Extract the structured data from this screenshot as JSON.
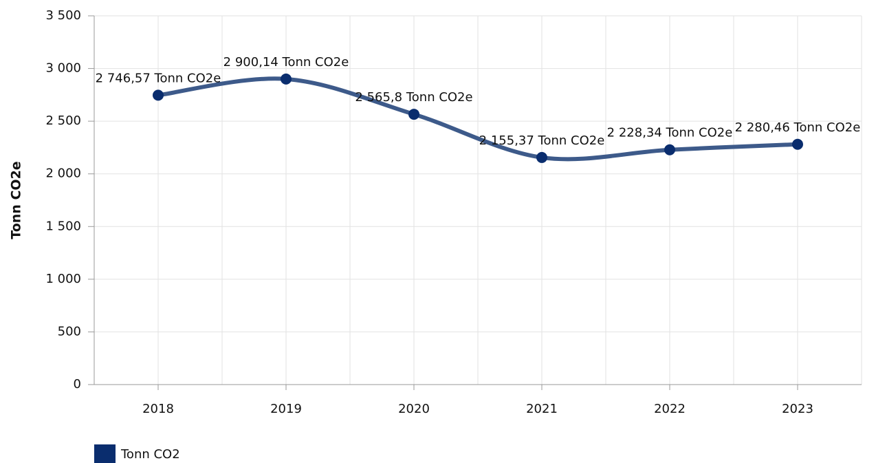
{
  "chart_data": {
    "type": "line",
    "y_label": "Tonn CO2e",
    "categories": [
      "2018",
      "2019",
      "2020",
      "2021",
      "2022",
      "2023"
    ],
    "series": [
      {
        "name": "Tonn CO2",
        "color": "#3d5a8a",
        "marker_color": "#0a2d6e",
        "values": [
          2746.57,
          2900.14,
          2565.8,
          2155.37,
          2228.34,
          2280.46
        ],
        "value_labels": [
          "2 746,57 Tonn CO2e",
          "2 900,14 Tonn CO2e",
          "2 565,8 Tonn CO2e",
          "2 155,37 Tonn CO2e",
          "2 228,34 Tonn CO2e",
          "2 280,46 Tonn CO2e"
        ]
      }
    ],
    "ylim": [
      0,
      3500
    ],
    "yticks": [
      0,
      500,
      {
        "value": 1000,
        "label": "1 000"
      },
      {
        "value": 1500,
        "label": "1 500"
      },
      {
        "value": 2000,
        "label": "2 000"
      },
      {
        "value": 2500,
        "label": "2 500"
      },
      {
        "value": 3000,
        "label": "3 000"
      },
      {
        "value": 3500,
        "label": "3 500"
      }
    ],
    "grid": true
  }
}
